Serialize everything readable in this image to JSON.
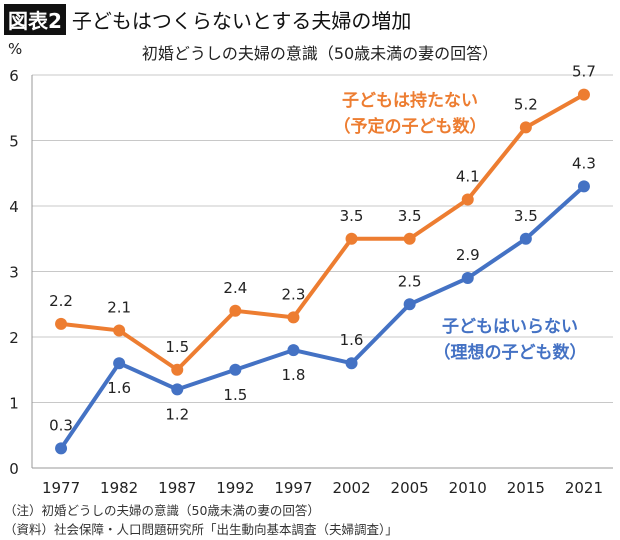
{
  "header": {
    "tag": "図表2",
    "title": "子どもはつくらないとする夫婦の増加"
  },
  "notes": [
    "（注）初婚どうしの夫婦の意識（50歳未満の妻の回答）",
    "（資料）社会保障・人口問題研究所「出生動向基本調査（夫婦調査）」"
  ],
  "chart_data": {
    "type": "line",
    "title": "初婚どうしの夫婦の意識（50歳未満の妻の回答）",
    "ylabel": "%",
    "ylim": [
      0,
      6
    ],
    "yticks": [
      "0",
      "1",
      "2",
      "3",
      "4",
      "5",
      "6"
    ],
    "grid": true,
    "categories": [
      "1977",
      "1982",
      "1987",
      "1992",
      "1997",
      "2002",
      "2005",
      "2010",
      "2015",
      "2021"
    ],
    "series": [
      {
        "name": "子どもは持たない（予定の子ども数）",
        "name_lines": [
          "子どもは持たない",
          "（予定の子ども数）"
        ],
        "color": "#ed7d31",
        "values": [
          2.2,
          2.1,
          1.5,
          2.4,
          2.3,
          3.5,
          3.5,
          4.1,
          5.2,
          5.7
        ]
      },
      {
        "name": "子どもはいらない（理想の子ども数）",
        "name_lines": [
          "子どもはいらない",
          "（理想の子ども数）"
        ],
        "color": "#4472c4",
        "values": [
          0.3,
          1.6,
          1.2,
          1.5,
          1.8,
          1.6,
          2.5,
          2.9,
          3.5,
          4.3
        ]
      }
    ]
  }
}
